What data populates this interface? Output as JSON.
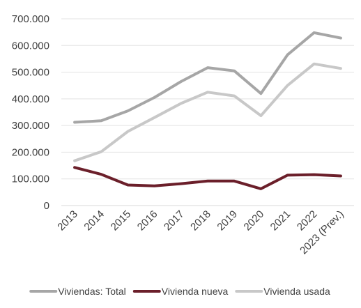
{
  "chart_data": {
    "type": "line",
    "title": "",
    "xlabel": "",
    "ylabel": "",
    "x": [
      "2013",
      "2014",
      "2015",
      "2016",
      "2017",
      "2018",
      "2019",
      "2020",
      "2021",
      "2022",
      "2023 (Prev.)"
    ],
    "ylim": [
      0,
      700000
    ],
    "yticks": [
      0,
      100000,
      200000,
      300000,
      400000,
      500000,
      600000,
      700000
    ],
    "ytick_labels": [
      "0",
      "100.000",
      "200.000",
      "300.000",
      "400.000",
      "500.000",
      "600.000",
      "700.000"
    ],
    "grid": true,
    "legend_position": "bottom",
    "series": [
      {
        "name": "Viviendas: Total",
        "color": "#a6a6a6",
        "values": [
          312000,
          318000,
          355000,
          405000,
          465000,
          517000,
          505000,
          420000,
          565000,
          648000,
          628000
        ]
      },
      {
        "name": "Vivienda nueva",
        "color": "#6b1f2a",
        "values": [
          143000,
          117000,
          77000,
          74000,
          82000,
          92000,
          92000,
          63000,
          114000,
          116000,
          111000
        ]
      },
      {
        "name": "Vivienda usada",
        "color": "#c8c8c8",
        "values": [
          168000,
          202000,
          278000,
          330000,
          383000,
          425000,
          411000,
          337000,
          450000,
          531000,
          514000
        ]
      }
    ]
  }
}
